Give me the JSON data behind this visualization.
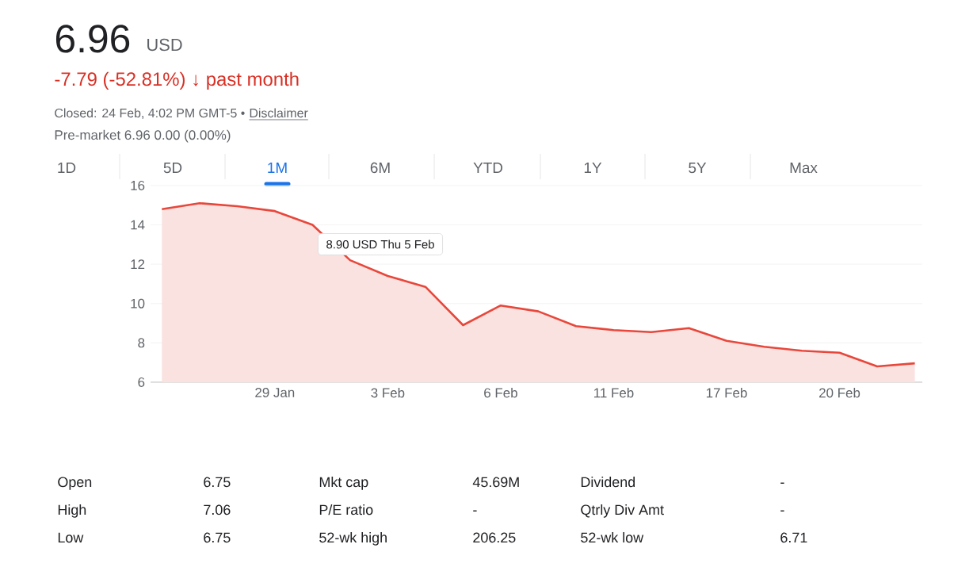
{
  "chart_data": {
    "type": "area",
    "title": "6.96",
    "subtitle": "-7.79 (-52.81%) ↓ past month",
    "categories": [
      null,
      null,
      null,
      "29 Jan",
      null,
      null,
      "3 Feb",
      null,
      null,
      "6 Feb",
      null,
      null,
      "11 Feb",
      null,
      null,
      "17 Feb",
      null,
      null,
      "20 Feb",
      null,
      null
    ],
    "series": [
      {
        "color": "#e8473b",
        "values": [
          14.8,
          15.1,
          14.95,
          14.7,
          14.0,
          12.2,
          11.4,
          10.85,
          8.9,
          9.9,
          9.6,
          8.85,
          8.65,
          8.55,
          8.75,
          8.1,
          7.8,
          7.6,
          7.5,
          6.8,
          6.96
        ]
      }
    ],
    "ylim": [
      6,
      16
    ],
    "yticks": [
      6,
      8,
      10,
      12,
      14,
      16
    ],
    "grid": "y",
    "annotations": [
      "USD",
      "Closed: 24 Feb, 4:02 PM GMT-5 •",
      "Disclaimer",
      "Pre-market 6.96 0.00 (0.00%)",
      "1D",
      "5D",
      "1M",
      "6M",
      "YTD",
      "1Y",
      "5Y",
      "Max",
      "8.90 USD  Thu 5 Feb",
      "Open",
      "6.75",
      "Mkt cap",
      "45.69M",
      "Dividend",
      "-",
      "High",
      "7.06",
      "P/E ratio",
      "-",
      "Qtrly Div Amt",
      "-",
      "Low",
      "6.75",
      "52-wk high",
      "206.25",
      "52-wk low",
      "6.71"
    ]
  }
}
